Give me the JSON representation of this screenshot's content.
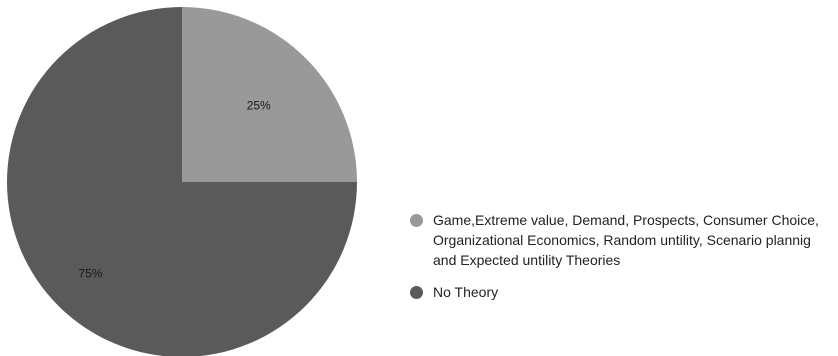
{
  "chart_data": {
    "type": "pie",
    "title": "",
    "slices": [
      {
        "label": "Game,Extreme value, Demand, Prospects, Consumer Choice, Organizational Economics,  Random untility, Scenario plannig and Expected untility Theories",
        "value": 25,
        "display": "25%",
        "color": "#999999"
      },
      {
        "label": "No Theory",
        "value": 75,
        "display": "75%",
        "color": "#5a5a5a"
      }
    ],
    "legend_position": "right"
  }
}
